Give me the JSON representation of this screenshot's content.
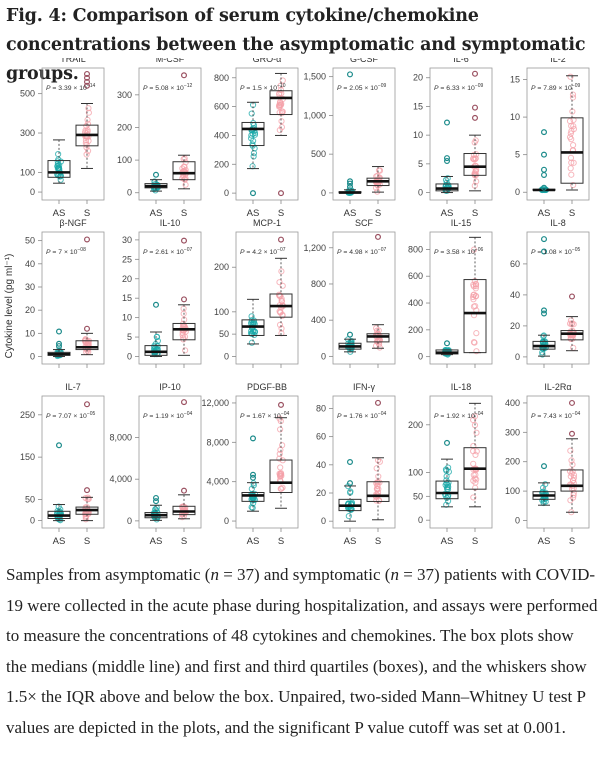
{
  "figure": {
    "title": "Fig. 4: Comparison of serum cytokine/chemokine concentrations between the asymptomatic and symptomatic groups.",
    "caption": {
      "part1": "Samples from asymptomatic (",
      "n1_label": "n",
      "part2": " = 37) and symptomatic (",
      "n2_label": "n",
      "part3": " = 37) patients with COVID-19 were collected in the acute phase during hospitalization, and assays were performed to measure the concentrations of 48 cytokines and chemokines. The box plots show the medians (middle line) and first and third quartiles (boxes), and the whiskers show 1.5× the IQR above and below the box. Unpaired, two-sided Mann–Whitney U test P values are depicted in the plots, and the significant P value cutoff was set at 0.001."
    }
  },
  "chart_data": {
    "type": "box",
    "ylabel": "Cytokine level (pg ml⁻¹)",
    "groups": [
      "AS",
      "S"
    ],
    "group_colors": {
      "AS": "#1aa8a8",
      "S": "#f4a0a8"
    },
    "panels": [
      {
        "title": "TRAIL",
        "p_value": "3.39 × 10",
        "p_exp": "−14",
        "yticks": [
          0,
          100,
          300,
          500
        ],
        "ylabel_ticks": [
          "0",
          "100",
          "300",
          "500"
        ],
        "ylim": [
          -20,
          610
        ],
        "AS": {
          "q1": 75,
          "median": 100,
          "q3": 160,
          "wlo": 45,
          "whi": 265,
          "outliers": []
        },
        "S": {
          "q1": 235,
          "median": 290,
          "q3": 340,
          "wlo": 120,
          "whi": 450,
          "outliers": [
            540,
            560,
            580,
            600
          ]
        }
      },
      {
        "title": "M-CSF",
        "p_value": "5.08 × 10",
        "p_exp": "−12",
        "yticks": [
          0,
          100,
          200,
          300
        ],
        "ylabel_ticks": [
          "0",
          "100",
          "200",
          "300"
        ],
        "ylim": [
          -10,
          370
        ],
        "AS": {
          "q1": 15,
          "median": 20,
          "q3": 28,
          "wlo": 5,
          "whi": 40,
          "outliers": [
            55
          ]
        },
        "S": {
          "q1": 40,
          "median": 60,
          "q3": 95,
          "wlo": 12,
          "whi": 115,
          "outliers": [
            360
          ]
        }
      },
      {
        "title": "GRO-α",
        "p_value": "1.5 × 10",
        "p_exp": "−10",
        "yticks": [
          0,
          200,
          400,
          600,
          800
        ],
        "ylabel_ticks": [
          "0",
          "200",
          "400",
          "600",
          "800"
        ],
        "ylim": [
          -20,
          840
        ],
        "AS": {
          "q1": 330,
          "median": 445,
          "q3": 490,
          "wlo": 170,
          "whi": 630,
          "outliers": [
            0
          ]
        },
        "S": {
          "q1": 545,
          "median": 660,
          "q3": 710,
          "wlo": 400,
          "whi": 830,
          "outliers": [
            0
          ]
        }
      },
      {
        "title": "G-CSF",
        "p_value": "2.05 × 10",
        "p_exp": "−09",
        "yticks": [
          0,
          500,
          1000,
          1500
        ],
        "ylabel_ticks": [
          "0",
          "500",
          "1,000",
          "1,500"
        ],
        "ylim": [
          -40,
          1560
        ],
        "AS": {
          "q1": 0,
          "median": 5,
          "q3": 15,
          "wlo": 0,
          "whi": 40,
          "outliers": [
            80,
            120,
            150,
            1530
          ]
        },
        "S": {
          "q1": 95,
          "median": 150,
          "q3": 190,
          "wlo": 10,
          "whi": 340,
          "outliers": []
        }
      },
      {
        "title": "IL-6",
        "p_value": "6.33 × 10",
        "p_exp": "−09",
        "yticks": [
          0,
          5,
          10,
          15,
          20
        ],
        "ylabel_ticks": [
          "0",
          "5",
          "10",
          "15",
          "20"
        ],
        "ylim": [
          -0.6,
          21
        ],
        "AS": {
          "q1": 0.3,
          "median": 0.7,
          "q3": 1.5,
          "wlo": 0,
          "whi": 2.8,
          "outliers": [
            5.5,
            6,
            12.2
          ]
        },
        "S": {
          "q1": 3,
          "median": 4.5,
          "q3": 6.8,
          "wlo": 0.3,
          "whi": 10,
          "outliers": [
            13,
            14.8,
            20.7
          ]
        }
      },
      {
        "title": "IL-2",
        "p_value": "7.89 × 10",
        "p_exp": "−09",
        "yticks": [
          0,
          5,
          10,
          15
        ],
        "ylabel_ticks": [
          "0",
          "5",
          "10",
          "15"
        ],
        "ylim": [
          -0.5,
          16
        ],
        "AS": {
          "q1": 0.3,
          "median": 0.3,
          "q3": 0.4,
          "wlo": 0.3,
          "whi": 0.4,
          "outliers": [
            0.6,
            2.3,
            3,
            5,
            8
          ]
        },
        "S": {
          "q1": 1.2,
          "median": 5.3,
          "q3": 9.9,
          "wlo": 0.3,
          "whi": 15.5,
          "outliers": []
        }
      },
      {
        "title": "β-NGF",
        "p_value": "7 × 10",
        "p_exp": "−08",
        "yticks": [
          0,
          10,
          20,
          30,
          40,
          50
        ],
        "ylabel_ticks": [
          "0",
          "10",
          "20",
          "30",
          "40",
          "50"
        ],
        "ylim": [
          -1.5,
          52
        ],
        "AS": {
          "q1": 0.5,
          "median": 1,
          "q3": 1.8,
          "wlo": 0,
          "whi": 3,
          "outliers": [
            4.5,
            5.5,
            10.8
          ]
        },
        "S": {
          "q1": 3,
          "median": 4,
          "q3": 6.8,
          "wlo": 0.8,
          "whi": 10,
          "outliers": [
            12,
            50.5
          ]
        }
      },
      {
        "title": "IL-10",
        "p_value": "2.61 × 10",
        "p_exp": "−07",
        "yticks": [
          0,
          5,
          10,
          15,
          20,
          25,
          30
        ],
        "ylabel_ticks": [
          "0",
          "5",
          "10",
          "15",
          "20",
          "25",
          "30"
        ],
        "ylim": [
          -0.9,
          31
        ],
        "AS": {
          "q1": 0.3,
          "median": 1.2,
          "q3": 2.8,
          "wlo": 0,
          "whi": 6.3,
          "outliers": [
            13.3
          ]
        },
        "S": {
          "q1": 4.3,
          "median": 7,
          "q3": 8.5,
          "wlo": 0.3,
          "whi": 13.3,
          "outliers": [
            14.7,
            29.8
          ]
        }
      },
      {
        "title": "MCP-1",
        "p_value": "4.2 × 10",
        "p_exp": "−07",
        "yticks": [
          0,
          50,
          100,
          200
        ],
        "ylabel_ticks": [
          "0",
          "50",
          "100",
          "200"
        ],
        "ylim": [
          -8,
          270
        ],
        "AS": {
          "q1": 47,
          "median": 67,
          "q3": 82,
          "wlo": 28,
          "whi": 128,
          "outliers": []
        },
        "S": {
          "q1": 88,
          "median": 113,
          "q3": 140,
          "wlo": 47,
          "whi": 220,
          "outliers": [
            262
          ]
        }
      },
      {
        "title": "SCF",
        "p_value": "4.98 × 10",
        "p_exp": "−07",
        "yticks": [
          0,
          400,
          800,
          1200
        ],
        "ylabel_ticks": [
          "0",
          "400",
          "800",
          "1,200"
        ],
        "ylim": [
          -40,
          1330
        ],
        "AS": {
          "q1": 80,
          "median": 110,
          "q3": 145,
          "wlo": 50,
          "whi": 190,
          "outliers": [
            240
          ]
        },
        "S": {
          "q1": 160,
          "median": 220,
          "q3": 250,
          "wlo": 90,
          "whi": 350,
          "outliers": [
            1320
          ]
        }
      },
      {
        "title": "IL-15",
        "p_value": "3.58 × 10",
        "p_exp": "−06",
        "yticks": [
          0,
          200,
          400,
          600,
          800
        ],
        "ylabel_ticks": [
          "0",
          "200",
          "400",
          "600",
          "800"
        ],
        "ylim": [
          -25,
          900
        ],
        "AS": {
          "q1": 20,
          "median": 30,
          "q3": 50,
          "wlo": 15,
          "whi": 50,
          "outliers": [
            100
          ]
        },
        "S": {
          "q1": 30,
          "median": 325,
          "q3": 575,
          "wlo": 30,
          "whi": 890,
          "outliers": []
        }
      },
      {
        "title": "IL-8",
        "p_value": "1.08 × 10",
        "p_exp": "−05",
        "yticks": [
          0,
          20,
          40,
          60
        ],
        "ylabel_ticks": [
          "0",
          "20",
          "40",
          "60"
        ],
        "ylim": [
          -2,
          78
        ],
        "AS": {
          "q1": 5,
          "median": 7,
          "q3": 10,
          "wlo": 0.5,
          "whi": 14,
          "outliers": [
            28,
            30,
            68,
            76
          ]
        },
        "S": {
          "q1": 11,
          "median": 15,
          "q3": 17,
          "wlo": 4,
          "whi": 26,
          "outliers": [
            39
          ]
        }
      },
      {
        "title": "IL-7",
        "p_value": "7.07 × 10",
        "p_exp": "−05",
        "yticks": [
          0,
          50,
          150,
          250
        ],
        "ylabel_ticks": [
          "0",
          "50",
          "150",
          "250"
        ],
        "ylim": [
          -8,
          285
        ],
        "AS": {
          "q1": 5,
          "median": 12,
          "q3": 22,
          "wlo": 0,
          "whi": 38,
          "outliers": [
            178
          ]
        },
        "S": {
          "q1": 15,
          "median": 25,
          "q3": 32,
          "wlo": 0,
          "whi": 55,
          "outliers": [
            72,
            275
          ]
        }
      },
      {
        "title": "IP-10",
        "p_value": "1.19 × 10",
        "p_exp": "−04",
        "yticks": [
          0,
          4000,
          8000
        ],
        "ylabel_ticks": [
          "0",
          "4,000",
          "8,000"
        ],
        "ylim": [
          -300,
          11600
        ],
        "AS": {
          "q1": 300,
          "median": 550,
          "q3": 800,
          "wlo": 50,
          "whi": 1500,
          "outliers": [
            1900,
            2200
          ]
        },
        "S": {
          "q1": 600,
          "median": 900,
          "q3": 1400,
          "wlo": 200,
          "whi": 2500,
          "outliers": [
            2900,
            11400
          ]
        }
      },
      {
        "title": "PDGF-BB",
        "p_value": "1.67 × 10",
        "p_exp": "−04",
        "yticks": [
          0,
          4000,
          8000,
          12000
        ],
        "ylabel_ticks": [
          "0",
          "4,000",
          "8,000",
          "12,000"
        ],
        "ylim": [
          -300,
          12300
        ],
        "AS": {
          "q1": 2000,
          "median": 2600,
          "q3": 2900,
          "wlo": 1000,
          "whi": 3900,
          "outliers": [
            4400,
            4700,
            8400
          ]
        },
        "S": {
          "q1": 2900,
          "median": 3900,
          "q3": 6200,
          "wlo": 1300,
          "whi": 10500,
          "outliers": [
            11800
          ]
        }
      },
      {
        "title": "IFN-γ",
        "p_value": "1.76 × 10",
        "p_exp": "−04",
        "yticks": [
          0,
          20,
          40,
          60,
          80
        ],
        "ylabel_ticks": [
          "0",
          "20",
          "40",
          "60",
          "80"
        ],
        "ylim": [
          -2,
          86
        ],
        "AS": {
          "q1": 7.5,
          "median": 11,
          "q3": 15.5,
          "wlo": 0,
          "whi": 25,
          "outliers": [
            27,
            42
          ]
        },
        "S": {
          "q1": 14,
          "median": 18,
          "q3": 28,
          "wlo": 1,
          "whi": 45,
          "outliers": [
            84
          ]
        }
      },
      {
        "title": "IL-18",
        "p_value": "1.92 × 10",
        "p_exp": "−04",
        "yticks": [
          0,
          50,
          100,
          200
        ],
        "ylabel_ticks": [
          "0",
          "50",
          "100",
          "200"
        ],
        "ylim": [
          -8,
          252
        ],
        "AS": {
          "q1": 45,
          "median": 57,
          "q3": 82,
          "wlo": 28,
          "whi": 128,
          "outliers": [
            162
          ]
        },
        "S": {
          "q1": 65,
          "median": 108,
          "q3": 152,
          "wlo": 28,
          "whi": 245,
          "outliers": []
        }
      },
      {
        "title": "IL-2Rα",
        "p_value": "7.43 × 10",
        "p_exp": "−04",
        "yticks": [
          0,
          100,
          200,
          300,
          400
        ],
        "ylabel_ticks": [
          "0",
          "100",
          "200",
          "300",
          "400"
        ],
        "ylim": [
          -12,
          410
        ],
        "AS": {
          "q1": 72,
          "median": 85,
          "q3": 98,
          "wlo": 52,
          "whi": 128,
          "outliers": [
            185
          ]
        },
        "S": {
          "q1": 100,
          "median": 118,
          "q3": 172,
          "wlo": 28,
          "whi": 278,
          "outliers": [
            295,
            400
          ]
        }
      }
    ]
  }
}
